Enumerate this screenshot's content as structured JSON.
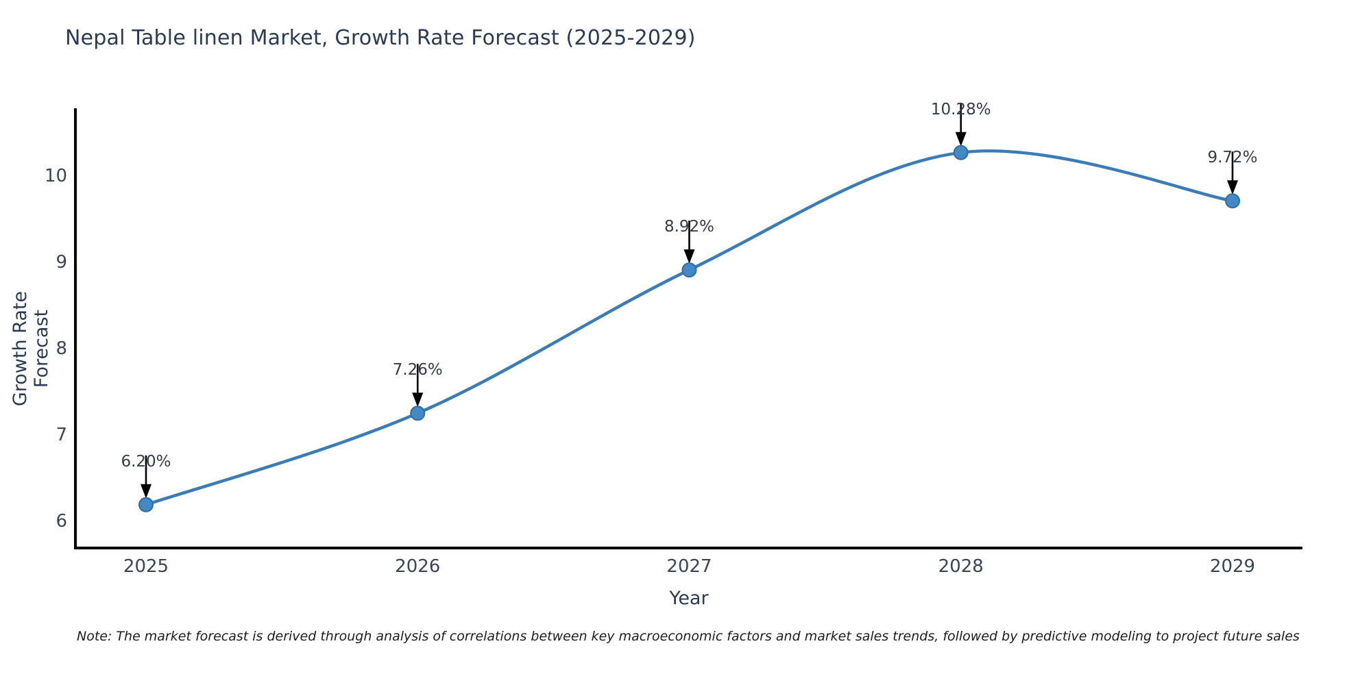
{
  "title": "Nepal Table linen Market, Growth Rate Forecast (2025-2029)",
  "note": "Note: The market forecast is derived through analysis of correlations between key macroeconomic factors and market sales trends, followed by predictive modeling to project future sales",
  "chart_data": {
    "type": "line",
    "title": "Nepal Table linen Market, Growth Rate Forecast (2025-2029)",
    "xlabel": "Year",
    "ylabel": "Growth Rate Forecast",
    "categories": [
      "2025",
      "2026",
      "2027",
      "2028",
      "2029"
    ],
    "series": [
      {
        "name": "Growth Rate Forecast",
        "values": [
          6.2,
          7.26,
          8.92,
          10.28,
          9.72
        ],
        "data_labels": [
          "6.20%",
          "7.26%",
          "8.92%",
          "10.28%",
          "9.72%"
        ]
      }
    ],
    "yticks": [
      6,
      7,
      8,
      9,
      10
    ],
    "ylim": [
      5.7,
      10.82
    ],
    "grid": false,
    "legend": false,
    "line_style": "smooth-spline",
    "marker": "circle",
    "annotations": "value labels with downward black arrows above each point",
    "colors": {
      "line": "#3a7cb8",
      "marker_fill": "#4289c5",
      "marker_edge": "#2e6da4",
      "arrow": "#000000",
      "axis": "#000000",
      "title_text": "#2b3a55",
      "tick_text": "#3a4556",
      "annotation_text": "#333c49"
    }
  }
}
